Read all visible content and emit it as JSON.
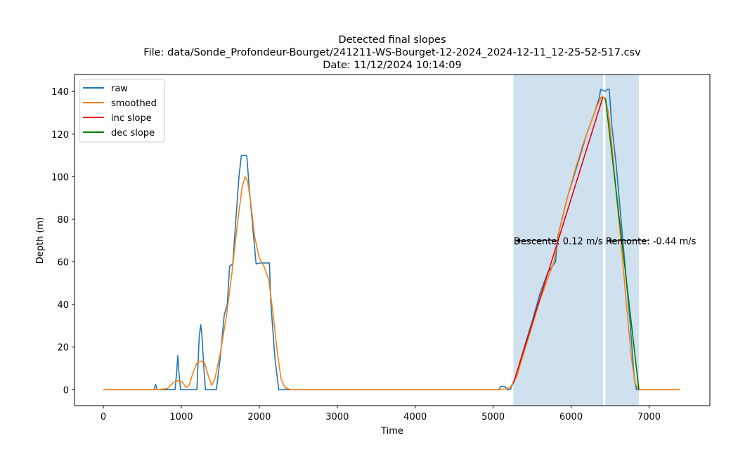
{
  "chart_data": {
    "type": "line",
    "title": [
      "Detected final slopes",
      "File: data/Sonde_Profondeur-Bourget/241211-WS-Bourget-12-2024_2024-12-11_12-25-52-517.csv",
      "Date: 11/12/2024 10:14:09"
    ],
    "xlabel": "Time",
    "ylabel": "Depth (m)",
    "xlim": [
      -370,
      7780
    ],
    "ylim": [
      -7.5,
      148
    ],
    "xticks": [
      0,
      1000,
      2000,
      3000,
      4000,
      5000,
      6000,
      7000
    ],
    "yticks": [
      0,
      20,
      40,
      60,
      80,
      100,
      120,
      140
    ],
    "legend_position": "upper-left",
    "shaded_regions": [
      {
        "x": [
          5260,
          6410
        ],
        "color": "#cfe0ee"
      },
      {
        "x": [
          6440,
          6870
        ],
        "color": "#cfe0ee"
      }
    ],
    "series": [
      {
        "name": "raw",
        "color": "#1f77b4",
        "points": [
          [
            0,
            0
          ],
          [
            650,
            0
          ],
          [
            670,
            2.5
          ],
          [
            690,
            0
          ],
          [
            920,
            0
          ],
          [
            940,
            8
          ],
          [
            955,
            16
          ],
          [
            970,
            8
          ],
          [
            990,
            0
          ],
          [
            1200,
            0
          ],
          [
            1230,
            25
          ],
          [
            1250,
            30.5
          ],
          [
            1265,
            25
          ],
          [
            1290,
            10
          ],
          [
            1310,
            0
          ],
          [
            1450,
            0
          ],
          [
            1500,
            15
          ],
          [
            1550,
            35
          ],
          [
            1590,
            40
          ],
          [
            1620,
            58
          ],
          [
            1660,
            59
          ],
          [
            1700,
            80
          ],
          [
            1740,
            100
          ],
          [
            1770,
            110
          ],
          [
            1840,
            110
          ],
          [
            1870,
            95
          ],
          [
            1920,
            75
          ],
          [
            1960,
            59
          ],
          [
            2000,
            59.5
          ],
          [
            2130,
            59.5
          ],
          [
            2150,
            40
          ],
          [
            2200,
            15
          ],
          [
            2250,
            0
          ],
          [
            5070,
            0
          ],
          [
            5100,
            1.5
          ],
          [
            5150,
            1.5
          ],
          [
            5180,
            0
          ],
          [
            5220,
            0
          ],
          [
            5280,
            5
          ],
          [
            5400,
            20
          ],
          [
            5500,
            32
          ],
          [
            5600,
            45
          ],
          [
            5700,
            55
          ],
          [
            5800,
            60
          ],
          [
            5830,
            72
          ],
          [
            5950,
            90
          ],
          [
            6100,
            108
          ],
          [
            6200,
            120
          ],
          [
            6300,
            130
          ],
          [
            6360,
            137
          ],
          [
            6380,
            141
          ],
          [
            6440,
            140
          ],
          [
            6460,
            141
          ],
          [
            6490,
            141
          ],
          [
            6520,
            125
          ],
          [
            6580,
            105
          ],
          [
            6640,
            80
          ],
          [
            6700,
            55
          ],
          [
            6760,
            30
          ],
          [
            6810,
            5
          ],
          [
            6840,
            0
          ],
          [
            7400,
            0
          ]
        ]
      },
      {
        "name": "smoothed",
        "color": "#ff7f0e",
        "points": [
          [
            0,
            0
          ],
          [
            700,
            0
          ],
          [
            820,
            0.5
          ],
          [
            900,
            3.5
          ],
          [
            960,
            4.2
          ],
          [
            1010,
            3.8
          ],
          [
            1060,
            1
          ],
          [
            1100,
            2
          ],
          [
            1150,
            8
          ],
          [
            1200,
            12.5
          ],
          [
            1250,
            13.5
          ],
          [
            1300,
            12.5
          ],
          [
            1350,
            6
          ],
          [
            1390,
            2
          ],
          [
            1430,
            5
          ],
          [
            1500,
            17
          ],
          [
            1580,
            35
          ],
          [
            1650,
            55
          ],
          [
            1720,
            78
          ],
          [
            1780,
            95
          ],
          [
            1820,
            100
          ],
          [
            1850,
            98
          ],
          [
            1890,
            88
          ],
          [
            1940,
            72
          ],
          [
            2000,
            62
          ],
          [
            2060,
            58
          ],
          [
            2120,
            52
          ],
          [
            2180,
            35
          ],
          [
            2230,
            18
          ],
          [
            2280,
            5
          ],
          [
            2330,
            1
          ],
          [
            2400,
            0
          ],
          [
            5050,
            0
          ],
          [
            5150,
            0.3
          ],
          [
            5220,
            1
          ],
          [
            5300,
            6
          ],
          [
            5400,
            18
          ],
          [
            5500,
            30
          ],
          [
            5600,
            42
          ],
          [
            5700,
            52
          ],
          [
            5780,
            60
          ],
          [
            5850,
            75
          ],
          [
            5950,
            90
          ],
          [
            6050,
            103
          ],
          [
            6150,
            115
          ],
          [
            6250,
            125
          ],
          [
            6330,
            133
          ],
          [
            6390,
            137.5
          ],
          [
            6430,
            137
          ],
          [
            6480,
            130
          ],
          [
            6530,
            112
          ],
          [
            6590,
            88
          ],
          [
            6650,
            65
          ],
          [
            6710,
            40
          ],
          [
            6770,
            16
          ],
          [
            6820,
            3
          ],
          [
            6870,
            0
          ],
          [
            7400,
            0
          ]
        ]
      },
      {
        "name": "inc slope",
        "color": "#e8000b",
        "points": [
          [
            5260,
            3
          ],
          [
            6410,
            137.5
          ]
        ]
      },
      {
        "name": "dec slope",
        "color": "#008000",
        "points": [
          [
            6440,
            137
          ],
          [
            6870,
            0
          ]
        ]
      }
    ],
    "annotations": [
      {
        "text": "Descente: 0.12 m/s",
        "x": 5265,
        "y": 70
      },
      {
        "text": "Remonte: -0.44 m/s",
        "x": 6445,
        "y": 70
      }
    ]
  }
}
